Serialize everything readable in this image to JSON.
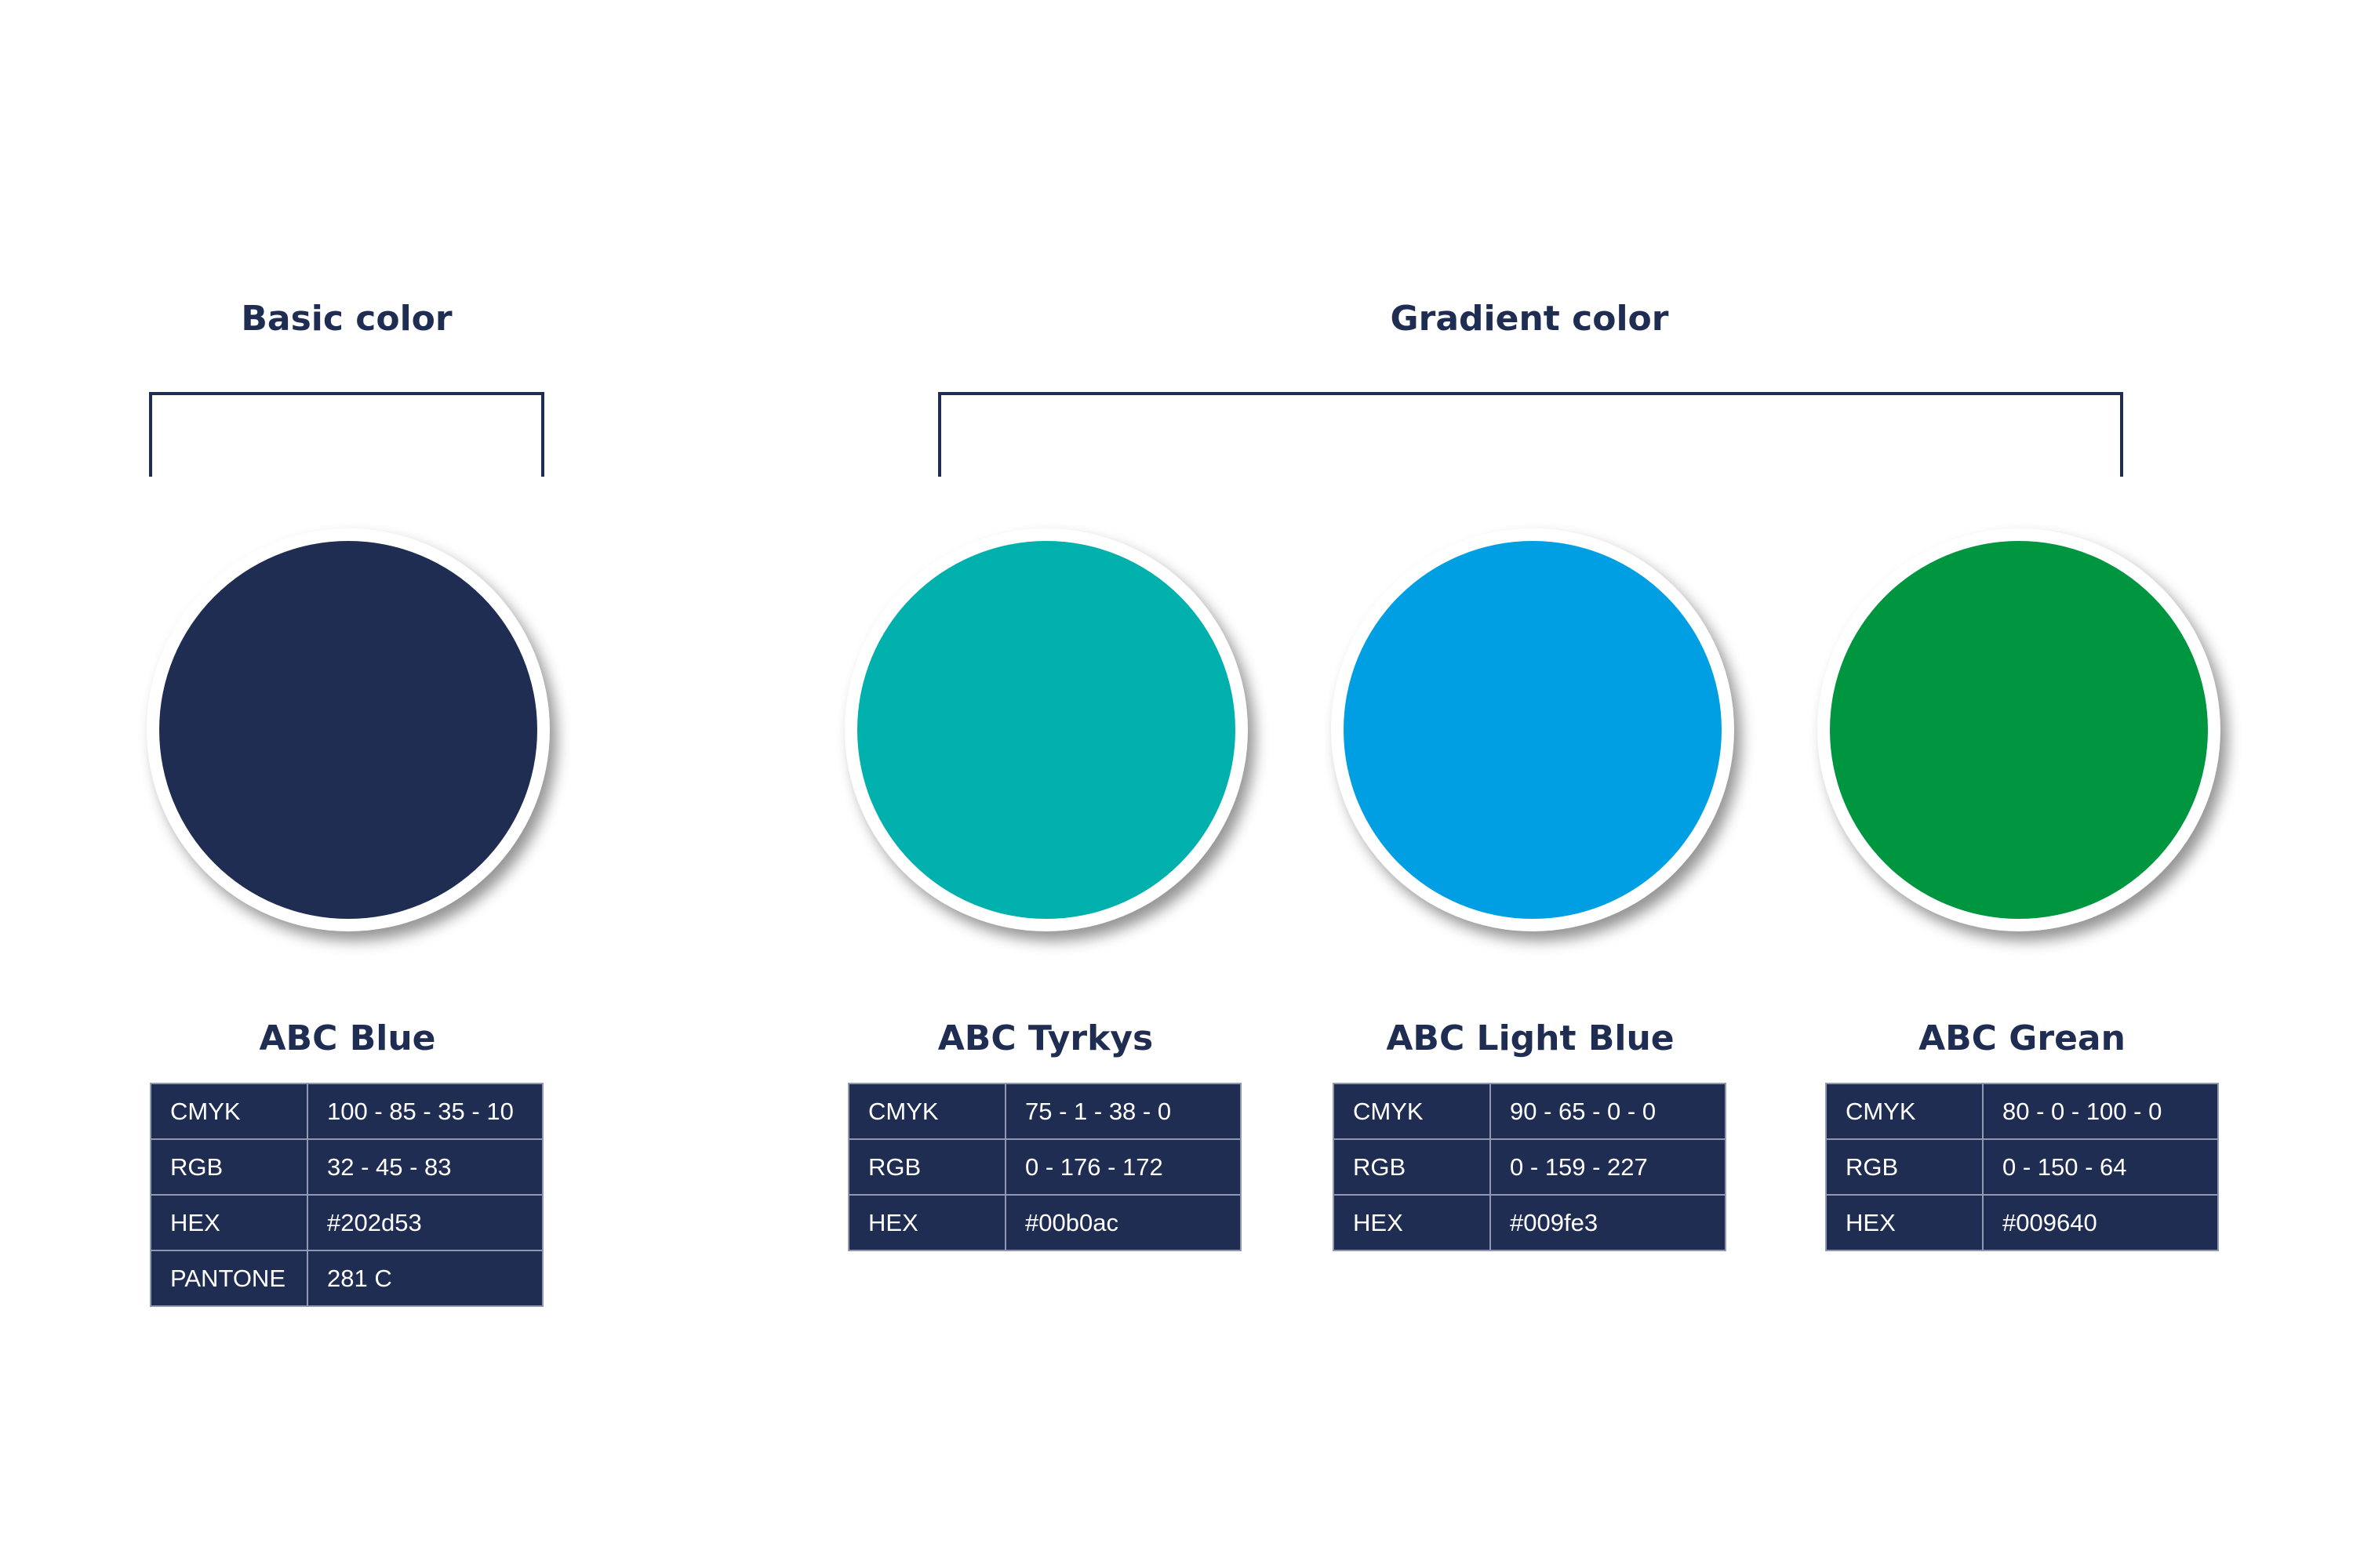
{
  "groups": [
    {
      "title": "Basic color"
    },
    {
      "title": "Gradient color"
    }
  ],
  "colors": [
    {
      "name": "ABC Blue",
      "fill": "#202d53",
      "specs": [
        {
          "label": "CMYK",
          "value": "100 - 85 - 35 - 10"
        },
        {
          "label": "RGB",
          "value": "32 - 45 - 83"
        },
        {
          "label": "HEX",
          "value": "#202d53"
        },
        {
          "label": "PANTONE",
          "value": "281 C"
        }
      ]
    },
    {
      "name": "ABC Tyrkys",
      "fill": "#00b0ac",
      "specs": [
        {
          "label": "CMYK",
          "value": "75 - 1 - 38 - 0"
        },
        {
          "label": "RGB",
          "value": "0 - 176 - 172"
        },
        {
          "label": "HEX",
          "value": "#00b0ac"
        }
      ]
    },
    {
      "name": "ABC Light Blue",
      "fill": "#009fe3",
      "specs": [
        {
          "label": "CMYK",
          "value": "90 - 65 - 0 - 0"
        },
        {
          "label": "RGB",
          "value": "0 - 159 - 227"
        },
        {
          "label": "HEX",
          "value": "#009fe3"
        }
      ]
    },
    {
      "name": "ABC Grean",
      "fill": "#009640",
      "specs": [
        {
          "label": "CMYK",
          "value": "80 - 0 - 100 - 0"
        },
        {
          "label": "RGB",
          "value": "0 - 150 - 64"
        },
        {
          "label": "HEX",
          "value": "#009640"
        }
      ]
    }
  ]
}
